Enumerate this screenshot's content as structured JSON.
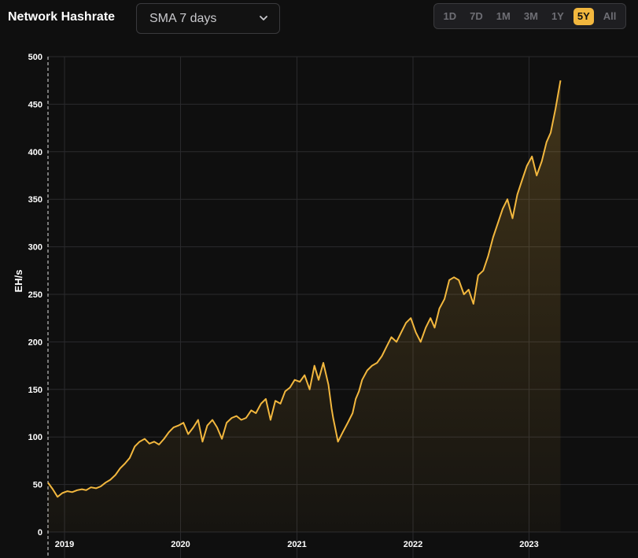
{
  "header": {
    "title": "Network Hashrate",
    "sma_select": {
      "value": "SMA 7 days"
    },
    "ranges": [
      {
        "label": "1D",
        "active": false
      },
      {
        "label": "7D",
        "active": false
      },
      {
        "label": "1M",
        "active": false
      },
      {
        "label": "3M",
        "active": false
      },
      {
        "label": "1Y",
        "active": false
      },
      {
        "label": "5Y",
        "active": true
      },
      {
        "label": "All",
        "active": false
      }
    ]
  },
  "colors": {
    "line": "#f2b73e",
    "active_range": "#f2b73e",
    "background": "#0f0f0f",
    "grid": "#2b2b2e"
  },
  "chart_data": {
    "type": "area",
    "title": "",
    "xlabel": "",
    "ylabel": "EH/s",
    "ylim": [
      0,
      500
    ],
    "xlim": [
      "2018-11-10",
      "2023-11-05"
    ],
    "grid": true,
    "y_ticks": [
      {
        "value": 0,
        "label": "0"
      },
      {
        "value": 50,
        "label": "50"
      },
      {
        "value": 100,
        "label": "100"
      },
      {
        "value": 150,
        "label": "150"
      },
      {
        "value": 200,
        "label": "200"
      },
      {
        "value": 250,
        "label": "250"
      },
      {
        "value": 300,
        "label": "300"
      },
      {
        "value": 350,
        "label": "350"
      },
      {
        "value": 400,
        "label": "400"
      },
      {
        "value": 450,
        "label": "450"
      },
      {
        "value": 500,
        "label": "500"
      }
    ],
    "x_ticks": [
      {
        "date": "2019-01-01",
        "label": "2019"
      },
      {
        "date": "2020-01-01",
        "label": "2020"
      },
      {
        "date": "2021-01-01",
        "label": "2021"
      },
      {
        "date": "2022-01-01",
        "label": "2022"
      },
      {
        "date": "2023-01-01",
        "label": "2023"
      }
    ],
    "series": [
      {
        "x": [
          "2018-11-10",
          "2018-11-25",
          "2018-12-10",
          "2018-12-25",
          "2019-01-10",
          "2019-01-25",
          "2019-02-10",
          "2019-02-25",
          "2019-03-10",
          "2019-03-25",
          "2019-04-10",
          "2019-04-25",
          "2019-05-10",
          "2019-05-25",
          "2019-06-10",
          "2019-06-25",
          "2019-07-10",
          "2019-07-25",
          "2019-08-10",
          "2019-08-25",
          "2019-09-10",
          "2019-09-25",
          "2019-10-10",
          "2019-10-25",
          "2019-11-10",
          "2019-11-25",
          "2019-12-10",
          "2019-12-25",
          "2020-01-10",
          "2020-01-25",
          "2020-02-10",
          "2020-02-25",
          "2020-03-10",
          "2020-03-25",
          "2020-04-10",
          "2020-04-25",
          "2020-05-10",
          "2020-05-25",
          "2020-06-10",
          "2020-06-25",
          "2020-07-10",
          "2020-07-25",
          "2020-08-10",
          "2020-08-25",
          "2020-09-10",
          "2020-09-25",
          "2020-10-10",
          "2020-10-25",
          "2020-11-10",
          "2020-11-25",
          "2020-12-10",
          "2020-12-25",
          "2021-01-10",
          "2021-01-25",
          "2021-02-10",
          "2021-02-25",
          "2021-03-10",
          "2021-03-25",
          "2021-04-10",
          "2021-04-20",
          "2021-04-25",
          "2021-05-10",
          "2021-05-25",
          "2021-06-10",
          "2021-06-25",
          "2021-07-05",
          "2021-07-15",
          "2021-07-25",
          "2021-08-10",
          "2021-08-25",
          "2021-09-10",
          "2021-09-25",
          "2021-10-10",
          "2021-10-25",
          "2021-11-10",
          "2021-11-25",
          "2021-12-10",
          "2021-12-25",
          "2022-01-10",
          "2022-01-25",
          "2022-02-10",
          "2022-02-25",
          "2022-03-10",
          "2022-03-25",
          "2022-04-10",
          "2022-04-25",
          "2022-05-10",
          "2022-05-25",
          "2022-06-10",
          "2022-06-25",
          "2022-07-10",
          "2022-07-25",
          "2022-08-10",
          "2022-08-25",
          "2022-09-10",
          "2022-09-25",
          "2022-10-10",
          "2022-10-25",
          "2022-11-10",
          "2022-11-25",
          "2022-12-10",
          "2022-12-25",
          "2023-01-10",
          "2023-01-25",
          "2023-02-10",
          "2023-02-25",
          "2023-03-10",
          "2023-03-25",
          "2023-04-10",
          "2023-04-25",
          "2023-05-10",
          "2023-05-25",
          "2023-06-10",
          "2023-06-25",
          "2023-07-10",
          "2023-07-25",
          "2023-08-10",
          "2023-08-25",
          "2023-09-10",
          "2023-09-25",
          "2023-10-10",
          "2023-10-25",
          "2023-11-05"
        ],
        "values": [
          52,
          45,
          37,
          41,
          43,
          42,
          44,
          45,
          44,
          47,
          46,
          48,
          52,
          55,
          60,
          67,
          72,
          78,
          90,
          95,
          98,
          93,
          95,
          92,
          98,
          105,
          110,
          112,
          115,
          103,
          110,
          118,
          95,
          112,
          118,
          110,
          98,
          115,
          120,
          122,
          118,
          120,
          128,
          125,
          135,
          140,
          118,
          138,
          135,
          148,
          152,
          160,
          158,
          165,
          150,
          175,
          160,
          178,
          155,
          130,
          120,
          95,
          105,
          115,
          125,
          140,
          148,
          160,
          170,
          175,
          178,
          185,
          195,
          205,
          200,
          210,
          220,
          225,
          210,
          200,
          215,
          225,
          215,
          235,
          245,
          265,
          268,
          265,
          250,
          255,
          240,
          270,
          275,
          290,
          310,
          325,
          340,
          350,
          330,
          355,
          370,
          385,
          395,
          375,
          390,
          410,
          420,
          445,
          475,
          null,
          null,
          null,
          null,
          null,
          null,
          null,
          null,
          null,
          null,
          null,
          null,
          null,
          null
        ]
      }
    ]
  }
}
